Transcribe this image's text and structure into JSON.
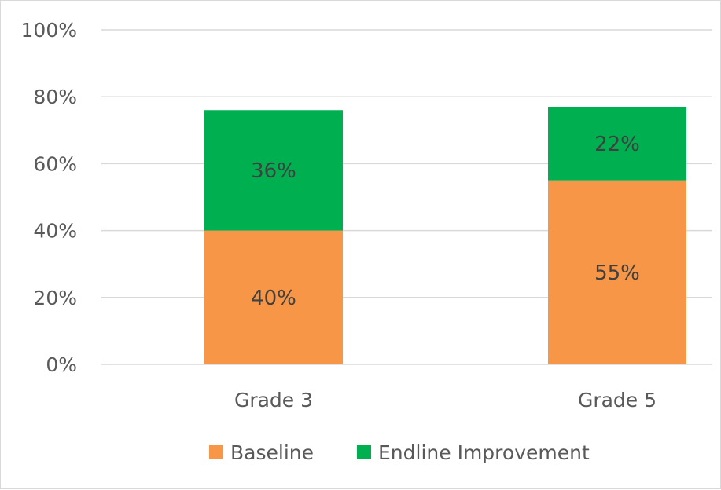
{
  "chart_data": {
    "type": "bar",
    "stacked": true,
    "categories": [
      "Grade 3",
      "Grade 5"
    ],
    "series": [
      {
        "name": "Baseline",
        "values": [
          40,
          55
        ],
        "labels": [
          "40%",
          "55%"
        ],
        "color": "#f79646"
      },
      {
        "name": "Endline Improvement",
        "values": [
          36,
          22
        ],
        "labels": [
          "36%",
          "22%"
        ],
        "color": "#00b050"
      }
    ],
    "ylim": [
      0,
      100
    ],
    "yticks": [
      "0%",
      "20%",
      "40%",
      "60%",
      "80%",
      "100%"
    ],
    "grid": true,
    "legend_position": "bottom",
    "gridline_color": "#d9d9d9"
  }
}
